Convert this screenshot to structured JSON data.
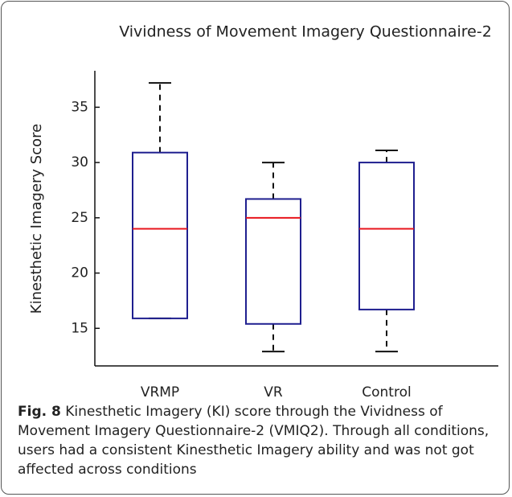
{
  "chart_data": {
    "type": "box",
    "title": "Vividness of Movement Imagery Questionnaire-2",
    "ylabel": "Kinesthetic Imagery Score",
    "categories": [
      "VRMP",
      "VR",
      "Control"
    ],
    "boxes": [
      {
        "min": 15.9,
        "q1": 15.9,
        "median": 24.0,
        "q3": 30.9,
        "max": 37.2
      },
      {
        "min": 12.9,
        "q1": 15.4,
        "median": 25.0,
        "q3": 26.7,
        "max": 30.0
      },
      {
        "min": 12.9,
        "q1": 16.7,
        "median": 24.0,
        "q3": 30.0,
        "max": 31.1
      }
    ],
    "box_color": "#1f1f8f",
    "median_color": "#e8141c",
    "whisker_color": "#111111",
    "ylim": [
      11.6,
      38.3
    ],
    "yticks": [
      15,
      20,
      25,
      30,
      35
    ]
  },
  "caption": {
    "label": "Fig. 8",
    "text": "Kinesthetic Imagery (KI) score through the Vividness of Movement Imagery Questionnaire-2 (VMIQ2). Through all conditions, users had a consistent Kinesthetic Imagery ability and was not got affected across conditions"
  }
}
